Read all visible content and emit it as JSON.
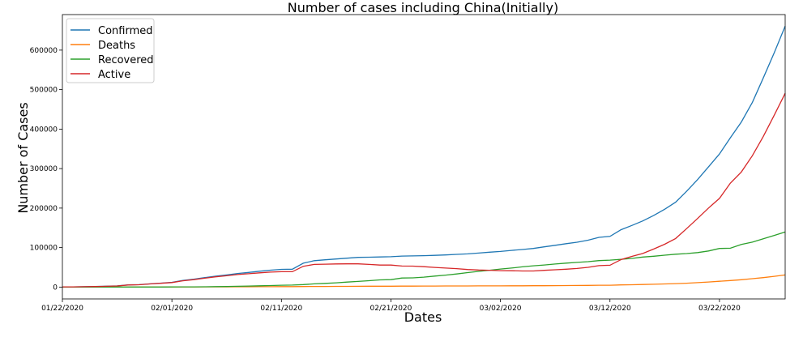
{
  "chart_data": {
    "type": "line",
    "title": "Number of cases including China(Initially)",
    "xlabel": "Dates",
    "ylabel": "Number of Cases",
    "x": [
      "01/22/2020",
      "01/23/2020",
      "01/24/2020",
      "01/25/2020",
      "01/26/2020",
      "01/27/2020",
      "01/28/2020",
      "01/29/2020",
      "01/30/2020",
      "01/31/2020",
      "02/01/2020",
      "02/02/2020",
      "02/03/2020",
      "02/04/2020",
      "02/05/2020",
      "02/06/2020",
      "02/07/2020",
      "02/08/2020",
      "02/09/2020",
      "02/10/2020",
      "02/11/2020",
      "02/12/2020",
      "02/13/2020",
      "02/14/2020",
      "02/15/2020",
      "02/16/2020",
      "02/17/2020",
      "02/18/2020",
      "02/19/2020",
      "02/20/2020",
      "02/21/2020",
      "02/22/2020",
      "02/23/2020",
      "02/24/2020",
      "02/25/2020",
      "02/26/2020",
      "02/27/2020",
      "02/28/2020",
      "02/29/2020",
      "03/01/2020",
      "03/02/2020",
      "03/03/2020",
      "03/04/2020",
      "03/05/2020",
      "03/06/2020",
      "03/07/2020",
      "03/08/2020",
      "03/09/2020",
      "03/10/2020",
      "03/11/2020",
      "03/12/2020",
      "03/13/2020",
      "03/14/2020",
      "03/15/2020",
      "03/16/2020",
      "03/17/2020",
      "03/18/2020",
      "03/19/2020",
      "03/20/2020",
      "03/21/2020",
      "03/22/2020",
      "03/23/2020",
      "03/24/2020",
      "03/25/2020",
      "03/26/2020",
      "03/27/2020",
      "03/28/2020"
    ],
    "xticks": [
      "01/22/2020",
      "02/01/2020",
      "02/11/2020",
      "02/21/2020",
      "03/02/2020",
      "03/12/2020",
      "03/22/2020"
    ],
    "yticks": [
      0,
      100000,
      200000,
      300000,
      400000,
      500000,
      600000
    ],
    "xlim": [
      "01/22/2020",
      "03/28/2020"
    ],
    "ylim": [
      -30000,
      690000
    ],
    "grid": false,
    "legend_position": "top-left",
    "series": [
      {
        "name": "Confirmed",
        "color": "#1f77b4",
        "values": [
          555,
          654,
          941,
          1434,
          2118,
          2927,
          5578,
          6166,
          8234,
          9927,
          12038,
          16787,
          19881,
          23892,
          27635,
          30794,
          34391,
          37120,
          40150,
          42762,
          44802,
          45221,
          60368,
          66885,
          69030,
          71224,
          73258,
          75136,
          75639,
          76197,
          76819,
          78572,
          78958,
          79561,
          80406,
          81388,
          82746,
          84112,
          86011,
          88369,
          90306,
          92840,
          95120,
          97886,
          101800,
          105847,
          109821,
          113590,
          118620,
          125875,
          128343,
          145193,
          156097,
          167449,
          181546,
          197168,
          214915,
          242713,
          272167,
          304528,
          336953,
          378235,
          418045,
          467653,
          529591,
          593291,
          660706
        ]
      },
      {
        "name": "Deaths",
        "color": "#ff7f0e",
        "values": [
          17,
          18,
          26,
          42,
          56,
          82,
          131,
          133,
          171,
          213,
          259,
          362,
          426,
          492,
          564,
          634,
          719,
          806,
          906,
          1013,
          1113,
          1118,
          1371,
          1523,
          1666,
          1770,
          1868,
          2007,
          2122,
          2247,
          2251,
          2458,
          2469,
          2629,
          2708,
          2770,
          2814,
          2872,
          2941,
          2996,
          3085,
          3160,
          3254,
          3348,
          3460,
          3558,
          3802,
          3988,
          4262,
          4615,
          4720,
          5404,
          5819,
          6440,
          7126,
          7905,
          8733,
          9867,
          11299,
          12973,
          14623,
          16497,
          18615,
          21181,
          23970,
          27198,
          30652
        ]
      },
      {
        "name": "Recovered",
        "color": "#2ca02c",
        "values": [
          28,
          30,
          36,
          39,
          52,
          61,
          107,
          126,
          143,
          222,
          284,
          472,
          623,
          852,
          1124,
          1487,
          2011,
          2616,
          3244,
          3946,
          4683,
          5150,
          6295,
          8058,
          9395,
          10865,
          12583,
          14352,
          16121,
          18177,
          18890,
          22886,
          23394,
          25227,
          27905,
          30384,
          33277,
          36711,
          39782,
          42716,
          45602,
          48228,
          51170,
          53796,
          55865,
          58358,
          60694,
          62494,
          64404,
          67003,
          68324,
          70251,
          72624,
          76034,
          78088,
          80840,
          83207,
          84854,
          87256,
          91499,
          97704,
          98334,
          108000,
          113787,
          122150,
          130915,
          139415
        ]
      },
      {
        "name": "Active",
        "color": "#d62728",
        "values": [
          510,
          606,
          879,
          1353,
          2010,
          2784,
          5340,
          5907,
          7920,
          9492,
          11495,
          15953,
          18832,
          22548,
          25947,
          28673,
          31661,
          33698,
          36000,
          37803,
          39006,
          38953,
          52702,
          57304,
          57969,
          58589,
          58807,
          58777,
          57396,
          55773,
          55678,
          53228,
          53095,
          51705,
          49793,
          48234,
          46655,
          44529,
          43288,
          42657,
          41619,
          41452,
          40696,
          40742,
          42475,
          43931,
          45325,
          47108,
          49954,
          54257,
          55299,
          69538,
          77654,
          84975,
          96332,
          108423,
          122975,
          147992,
          173612,
          200056,
          224626,
          263404,
          291430,
          332685,
          381471,
          435178,
          490639
        ]
      }
    ]
  }
}
